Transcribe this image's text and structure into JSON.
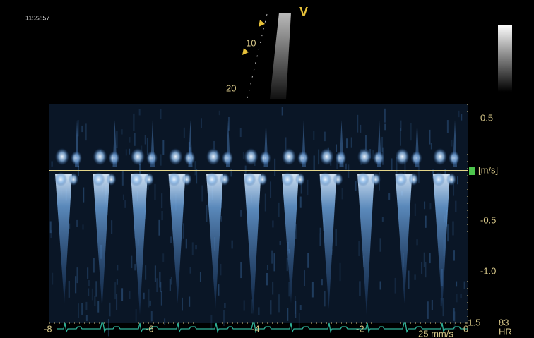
{
  "header": {
    "time": "11:22:57",
    "probe_mark": "V"
  },
  "sector": {
    "depth_labels": [
      "10",
      "20"
    ]
  },
  "velocity_scale": {
    "labels": [
      "0.5",
      "[m/s]",
      "-0.5",
      "-1.0",
      "-1.5"
    ]
  },
  "time_scale": {
    "labels": [
      "-8",
      "-6",
      "-4",
      "-2",
      "0"
    ]
  },
  "footer": {
    "heart_rate": "83",
    "heart_rate_label": "HR",
    "sweep_speed": "25 mm/s"
  }
}
